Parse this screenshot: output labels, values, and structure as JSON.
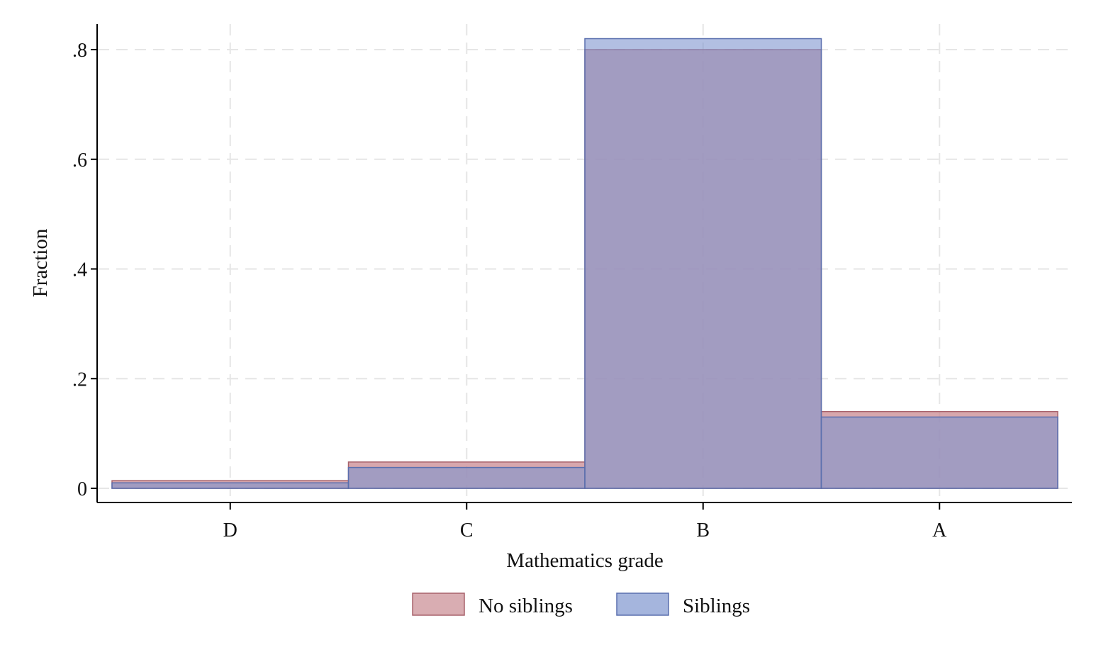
{
  "chart_data": {
    "type": "bar",
    "xlabel": "Mathematics grade",
    "ylabel": "Fraction",
    "categories": [
      "D",
      "C",
      "B",
      "A"
    ],
    "ylim": [
      0,
      0.82
    ],
    "yticks": [
      0,
      0.2,
      0.4,
      0.6,
      0.8
    ],
    "ytick_labels": [
      "0",
      ".2",
      ".4",
      ".6",
      ".8"
    ],
    "grid": true,
    "legend_position": "bottom",
    "series": [
      {
        "name": "No siblings",
        "values": [
          0.014,
          0.048,
          0.8,
          0.14
        ],
        "color": "#c98a91"
      },
      {
        "name": "Siblings",
        "values": [
          0.01,
          0.038,
          0.82,
          0.13
        ],
        "color": "#7f95cf"
      }
    ]
  }
}
